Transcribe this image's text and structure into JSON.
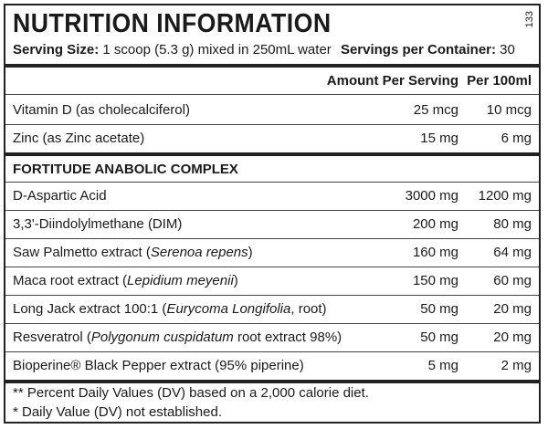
{
  "title": "NUTRITION INFORMATION",
  "side_number": "133",
  "serving_size_label": "Serving Size:",
  "serving_size_value": "1 scoop (5.3 g) mixed in 250mL water",
  "servings_label": "Servings per Container:",
  "servings_value": "30",
  "columns": {
    "amount_per_serving": "Amount Per Serving",
    "per_100ml": "Per 100ml"
  },
  "rows_top": [
    {
      "name": "Vitamin D (as cholecalciferol)",
      "amount": "25 mcg",
      "per100": "10 mcg"
    },
    {
      "name": "Zinc (as Zinc acetate)",
      "amount": "15 mg",
      "per100": "6 mg"
    }
  ],
  "section_title": "FORTITUDE ANABOLIC COMPLEX",
  "rows_complex": [
    {
      "name": "D-Aspartic Acid",
      "amount": "3000 mg",
      "per100": "1200 mg"
    },
    {
      "name": "3,3'-Diindolylmethane (DIM)",
      "amount": "200 mg",
      "per100": "80 mg"
    },
    {
      "name_a": "Saw Palmetto extract (",
      "name_i": "Serenoa repens",
      "name_b": ")",
      "amount": "160 mg",
      "per100": "64 mg"
    },
    {
      "name_a": "Maca root extract (",
      "name_i": "Lepidium meyenii",
      "name_b": ")",
      "amount": "150 mg",
      "per100": "60 mg"
    },
    {
      "name_a": "Long Jack extract 100:1 (",
      "name_i": "Eurycoma Longifolia",
      "name_b": ", root)",
      "amount": "50 mg",
      "per100": "20 mg"
    },
    {
      "name_a": "Resveratrol (",
      "name_i": "Polygonum cuspidatum",
      "name_b": " root extract 98%)",
      "amount": "50 mg",
      "per100": "20 mg"
    },
    {
      "name": "Bioperine® Black Pepper extract (95% piperine)",
      "amount": "5 mg",
      "per100": "2 mg"
    }
  ],
  "footnotes": [
    "** Percent Daily Values (DV) based on a 2,000 calorie diet.",
    "* Daily Value (DV) not established."
  ]
}
